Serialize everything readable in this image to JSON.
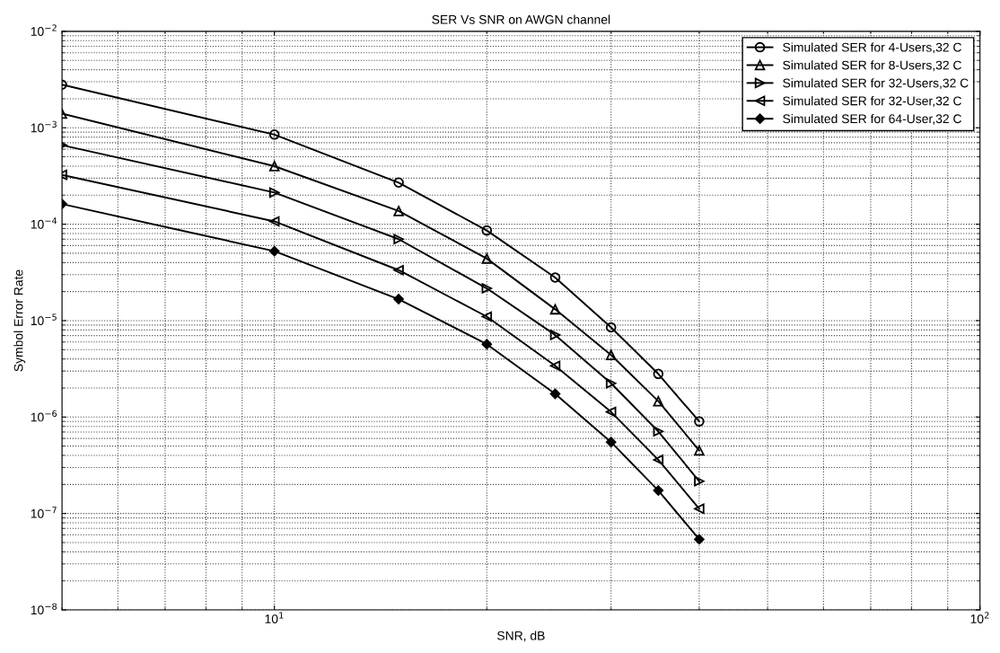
{
  "chart_data": {
    "type": "line",
    "title": "SER Vs SNR on AWGN channel",
    "xlabel": "SNR, dB",
    "ylabel": "Symbol Error Rate",
    "x": [
      5,
      10,
      15,
      20,
      25,
      30,
      35,
      40
    ],
    "series": [
      {
        "name": "Simulated SER for 4-Users,32 C",
        "color": "#000000",
        "marker": "circle",
        "values": [
          0.0028,
          0.00085,
          0.00027,
          8.6e-05,
          2.8e-05,
          8.5e-06,
          2.8e-06,
          9e-07
        ]
      },
      {
        "name": "Simulated SER for 8-Users,32 C",
        "color": "#000000",
        "marker": "triangle",
        "values": [
          0.0014,
          0.0004,
          0.000137,
          4.4e-05,
          1.31e-05,
          4.4e-06,
          1.46e-06,
          4.5e-07
        ]
      },
      {
        "name": "Simulated SER for 32-Users,32 C",
        "color": "#000000",
        "marker": "triangle-right",
        "values": [
          0.00066,
          0.000213,
          7e-05,
          2.16e-05,
          7.1e-06,
          2.24e-06,
          7.1e-07,
          2.16e-07
        ]
      },
      {
        "name": "Simulated SER for 32-User,32 C",
        "color": "#000000",
        "marker": "triangle-left",
        "values": [
          0.000325,
          0.000107,
          3.34e-05,
          1.1e-05,
          3.4e-06,
          1.13e-06,
          3.6e-07,
          1.12e-07
        ]
      },
      {
        "name": "Simulated SER for 64-User,32 C",
        "color": "#000000",
        "marker": "diamond",
        "values": [
          0.000162,
          5.25e-05,
          1.67e-05,
          5.7e-06,
          1.74e-06,
          5.5e-07,
          1.73e-07,
          5.4e-08
        ]
      }
    ],
    "log": "xy",
    "grid": true,
    "legend": "top right",
    "line_style": "solid",
    "xlim": [
      5,
      100
    ],
    "xticks": [
      {
        "value": 10,
        "label": "10$^{1}$"
      },
      {
        "value": 100,
        "label": "10$^{2}$"
      }
    ],
    "ylim": [
      1e-08,
      0.01
    ],
    "yticks": [
      {
        "value": 1e-08,
        "label": "10$^{−8}$"
      },
      {
        "value": 1e-07,
        "label": "10$^{−7}$"
      },
      {
        "value": 1e-06,
        "label": "10$^{−6}$"
      },
      {
        "value": 1e-05,
        "label": "10$^{−5}$"
      },
      {
        "value": 0.0001,
        "label": "10$^{−4}$"
      },
      {
        "value": 0.001,
        "label": "10$^{−3}$"
      },
      {
        "value": 0.01,
        "label": "10$^{−2}$"
      }
    ]
  }
}
